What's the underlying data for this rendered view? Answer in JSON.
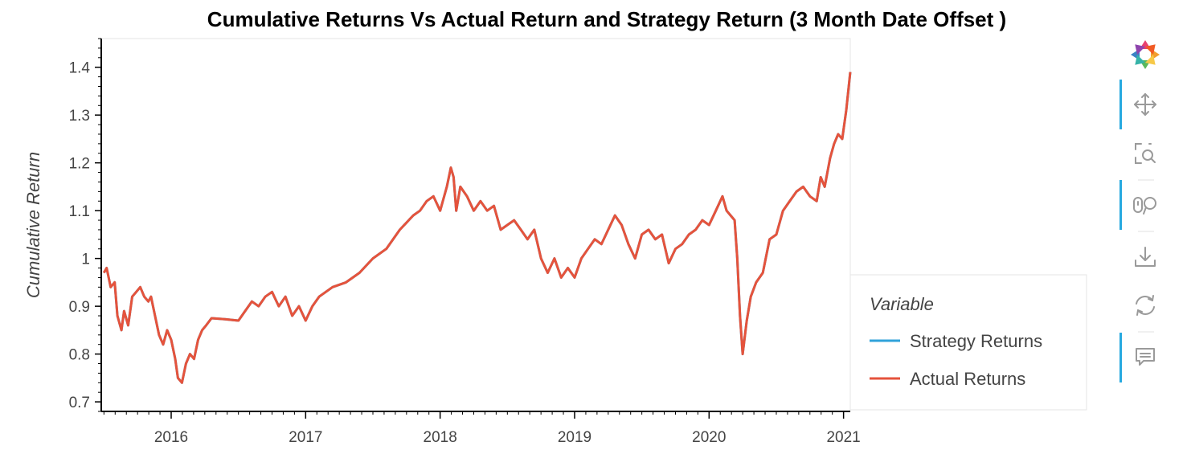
{
  "chart_data": {
    "type": "line",
    "title": "Cumulative Returns Vs Actual Return and Strategy Return (3 Month Date Offset )",
    "xlabel": "",
    "ylabel": "Cumulative Return",
    "xlim": [
      2015.48,
      2021.05
    ],
    "ylim": [
      0.68,
      1.46
    ],
    "x_ticks": [
      2016,
      2017,
      2018,
      2019,
      2020,
      2021
    ],
    "x_tick_labels": [
      "2016",
      "2017",
      "2018",
      "2019",
      "2020",
      "2021"
    ],
    "y_ticks": [
      0.7,
      0.8,
      0.9,
      1.0,
      1.1,
      1.2,
      1.3,
      1.4
    ],
    "y_tick_labels": [
      "0.7",
      "0.8",
      "0.9",
      "1",
      "1.1",
      "1.2",
      "1.3",
      "1.4"
    ],
    "grid": false,
    "legend": {
      "title": "Variable",
      "position": "right-outside"
    },
    "series": [
      {
        "name": "Strategy Returns",
        "color": "#30a2da",
        "x": [
          2015.5,
          2015.52,
          2015.55,
          2015.58,
          2015.6,
          2015.63,
          2015.65,
          2015.68,
          2015.71,
          2015.74,
          2015.77,
          2015.8,
          2015.83,
          2015.85,
          2015.88,
          2015.91,
          2015.94,
          2015.97,
          2016.0,
          2016.03,
          2016.05,
          2016.08,
          2016.11,
          2016.14,
          2016.17,
          2016.2,
          2016.23,
          2016.26,
          2016.3,
          2016.4,
          2016.5,
          2016.55,
          2016.6,
          2016.65,
          2016.7,
          2016.75,
          2016.8,
          2016.85,
          2016.9,
          2016.95,
          2017.0,
          2017.05,
          2017.1,
          2017.2,
          2017.3,
          2017.4,
          2017.5,
          2017.6,
          2017.7,
          2017.8,
          2017.85,
          2017.9,
          2017.95,
          2018.0,
          2018.05,
          2018.08,
          2018.1,
          2018.12,
          2018.15,
          2018.2,
          2018.25,
          2018.3,
          2018.35,
          2018.4,
          2018.45,
          2018.5,
          2018.55,
          2018.6,
          2018.65,
          2018.7,
          2018.75,
          2018.8,
          2018.85,
          2018.9,
          2018.95,
          2019.0,
          2019.05,
          2019.1,
          2019.15,
          2019.2,
          2019.25,
          2019.3,
          2019.35,
          2019.4,
          2019.45,
          2019.5,
          2019.55,
          2019.6,
          2019.65,
          2019.7,
          2019.75,
          2019.8,
          2019.85,
          2019.9,
          2019.95,
          2020.0,
          2020.05,
          2020.1,
          2020.13,
          2020.16,
          2020.19,
          2020.21,
          2020.23,
          2020.25,
          2020.28,
          2020.31,
          2020.35,
          2020.4,
          2020.45,
          2020.5,
          2020.55,
          2020.6,
          2020.65,
          2020.7,
          2020.75,
          2020.8,
          2020.83,
          2020.86,
          2020.9,
          2020.93,
          2020.96,
          2020.99,
          2021.02,
          2021.05
        ],
        "y": [
          0.97,
          0.98,
          0.94,
          0.95,
          0.88,
          0.85,
          0.89,
          0.86,
          0.92,
          0.93,
          0.94,
          0.92,
          0.91,
          0.92,
          0.88,
          0.84,
          0.82,
          0.85,
          0.83,
          0.79,
          0.75,
          0.74,
          0.78,
          0.8,
          0.79,
          0.83,
          0.85,
          0.86,
          0.875,
          0.873,
          0.87,
          0.89,
          0.91,
          0.9,
          0.92,
          0.93,
          0.9,
          0.92,
          0.88,
          0.9,
          0.87,
          0.9,
          0.92,
          0.94,
          0.95,
          0.97,
          1.0,
          1.02,
          1.06,
          1.09,
          1.1,
          1.12,
          1.13,
          1.1,
          1.15,
          1.19,
          1.17,
          1.1,
          1.15,
          1.13,
          1.1,
          1.12,
          1.1,
          1.11,
          1.06,
          1.07,
          1.08,
          1.06,
          1.04,
          1.06,
          1.0,
          0.97,
          1.0,
          0.96,
          0.98,
          0.96,
          1.0,
          1.02,
          1.04,
          1.03,
          1.06,
          1.09,
          1.07,
          1.03,
          1.0,
          1.05,
          1.06,
          1.04,
          1.05,
          0.99,
          1.02,
          1.03,
          1.05,
          1.06,
          1.08,
          1.07,
          1.1,
          1.13,
          1.1,
          1.09,
          1.08,
          1.0,
          0.88,
          0.8,
          0.87,
          0.92,
          0.95,
          0.97,
          1.04,
          1.05,
          1.1,
          1.12,
          1.14,
          1.15,
          1.13,
          1.12,
          1.17,
          1.15,
          1.21,
          1.24,
          1.26,
          1.25,
          1.31,
          1.39
        ]
      },
      {
        "name": "Actual Returns",
        "color": "#e5533c",
        "x": [
          2015.5,
          2015.52,
          2015.55,
          2015.58,
          2015.6,
          2015.63,
          2015.65,
          2015.68,
          2015.71,
          2015.74,
          2015.77,
          2015.8,
          2015.83,
          2015.85,
          2015.88,
          2015.91,
          2015.94,
          2015.97,
          2016.0,
          2016.03,
          2016.05,
          2016.08,
          2016.11,
          2016.14,
          2016.17,
          2016.2,
          2016.23,
          2016.26,
          2016.3,
          2016.4,
          2016.5,
          2016.55,
          2016.6,
          2016.65,
          2016.7,
          2016.75,
          2016.8,
          2016.85,
          2016.9,
          2016.95,
          2017.0,
          2017.05,
          2017.1,
          2017.2,
          2017.3,
          2017.4,
          2017.5,
          2017.6,
          2017.7,
          2017.8,
          2017.85,
          2017.9,
          2017.95,
          2018.0,
          2018.05,
          2018.08,
          2018.1,
          2018.12,
          2018.15,
          2018.2,
          2018.25,
          2018.3,
          2018.35,
          2018.4,
          2018.45,
          2018.5,
          2018.55,
          2018.6,
          2018.65,
          2018.7,
          2018.75,
          2018.8,
          2018.85,
          2018.9,
          2018.95,
          2019.0,
          2019.05,
          2019.1,
          2019.15,
          2019.2,
          2019.25,
          2019.3,
          2019.35,
          2019.4,
          2019.45,
          2019.5,
          2019.55,
          2019.6,
          2019.65,
          2019.7,
          2019.75,
          2019.8,
          2019.85,
          2019.9,
          2019.95,
          2020.0,
          2020.05,
          2020.1,
          2020.13,
          2020.16,
          2020.19,
          2020.21,
          2020.23,
          2020.25,
          2020.28,
          2020.31,
          2020.35,
          2020.4,
          2020.45,
          2020.5,
          2020.55,
          2020.6,
          2020.65,
          2020.7,
          2020.75,
          2020.8,
          2020.83,
          2020.86,
          2020.9,
          2020.93,
          2020.96,
          2020.99,
          2021.02,
          2021.05
        ],
        "y": [
          0.97,
          0.98,
          0.94,
          0.95,
          0.88,
          0.85,
          0.89,
          0.86,
          0.92,
          0.93,
          0.94,
          0.92,
          0.91,
          0.92,
          0.88,
          0.84,
          0.82,
          0.85,
          0.83,
          0.79,
          0.75,
          0.74,
          0.78,
          0.8,
          0.79,
          0.83,
          0.85,
          0.86,
          0.875,
          0.873,
          0.87,
          0.89,
          0.91,
          0.9,
          0.92,
          0.93,
          0.9,
          0.92,
          0.88,
          0.9,
          0.87,
          0.9,
          0.92,
          0.94,
          0.95,
          0.97,
          1.0,
          1.02,
          1.06,
          1.09,
          1.1,
          1.12,
          1.13,
          1.1,
          1.15,
          1.19,
          1.17,
          1.1,
          1.15,
          1.13,
          1.1,
          1.12,
          1.1,
          1.11,
          1.06,
          1.07,
          1.08,
          1.06,
          1.04,
          1.06,
          1.0,
          0.97,
          1.0,
          0.96,
          0.98,
          0.96,
          1.0,
          1.02,
          1.04,
          1.03,
          1.06,
          1.09,
          1.07,
          1.03,
          1.0,
          1.05,
          1.06,
          1.04,
          1.05,
          0.99,
          1.02,
          1.03,
          1.05,
          1.06,
          1.08,
          1.07,
          1.1,
          1.13,
          1.1,
          1.09,
          1.08,
          1.0,
          0.88,
          0.8,
          0.87,
          0.92,
          0.95,
          0.97,
          1.04,
          1.05,
          1.1,
          1.12,
          1.14,
          1.15,
          1.13,
          1.12,
          1.17,
          1.15,
          1.21,
          1.24,
          1.26,
          1.25,
          1.31,
          1.39
        ]
      }
    ]
  },
  "toolbar": {
    "logo_icon": "bokeh-logo-icon",
    "accent_color": "#26a9e0",
    "tools": [
      {
        "icon": "pan-icon",
        "active": true
      },
      {
        "icon": "box-zoom-icon",
        "active": false
      },
      {
        "icon": "wheel-zoom-icon",
        "active": true
      },
      {
        "icon": "save-icon",
        "active": false
      },
      {
        "icon": "reset-icon",
        "active": false
      },
      {
        "icon": "hover-icon",
        "active": true
      }
    ]
  }
}
